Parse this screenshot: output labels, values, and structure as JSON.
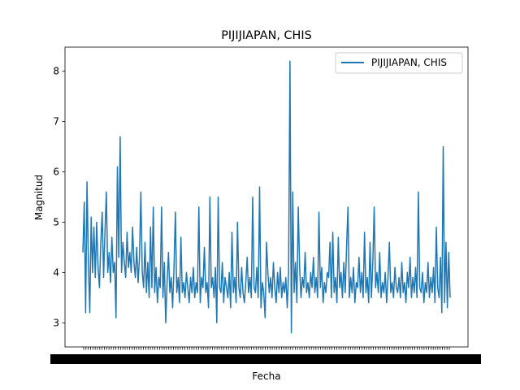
{
  "chart_data": {
    "type": "line",
    "title": "PIJIJIAPAN, CHIS",
    "xlabel": "Fecha",
    "ylabel": "Magnitud",
    "ylim": [
      2.52,
      8.48
    ],
    "yticks": [
      3,
      4,
      5,
      6,
      7,
      8
    ],
    "x_tick_labels_note": "",
    "legend_position": "top-right",
    "series": [
      {
        "name": "PIJIJIAPAN, CHIS",
        "color": "#1f77b4",
        "values": [
          4.4,
          5.4,
          3.2,
          5.8,
          4.2,
          3.2,
          5.1,
          4.0,
          4.9,
          3.9,
          5.0,
          4.1,
          3.7,
          4.6,
          5.2,
          3.9,
          4.8,
          5.6,
          4.0,
          4.4,
          3.8,
          4.7,
          4.0,
          4.2,
          3.1,
          6.1,
          4.3,
          6.7,
          4.0,
          4.6,
          4.2,
          3.9,
          4.8,
          4.1,
          4.4,
          4.0,
          4.9,
          4.2,
          3.9,
          4.5,
          3.8,
          4.3,
          5.6,
          4.0,
          3.7,
          4.6,
          3.6,
          4.2,
          3.5,
          4.9,
          3.7,
          5.3,
          3.6,
          4.1,
          3.4,
          3.9,
          3.7,
          5.3,
          3.5,
          4.2,
          3.0,
          3.8,
          4.4,
          3.6,
          3.9,
          3.3,
          4.1,
          5.2,
          3.6,
          3.9,
          3.4,
          4.7,
          3.6,
          3.8,
          3.5,
          4.0,
          3.7,
          3.4,
          3.9,
          3.6,
          4.1,
          3.5,
          3.8,
          3.6,
          5.3,
          3.4,
          3.9,
          3.7,
          4.5,
          3.6,
          3.8,
          3.3,
          5.5,
          3.7,
          3.9,
          3.5,
          4.1,
          3.0,
          5.5,
          3.7,
          3.6,
          4.2,
          3.4,
          3.9,
          3.7,
          3.5,
          4.0,
          3.3,
          4.8,
          3.6,
          3.9,
          3.4,
          5.0,
          3.7,
          3.5,
          4.1,
          3.6,
          3.4,
          3.8,
          4.3,
          3.6,
          3.9,
          3.5,
          5.5,
          3.7,
          3.6,
          4.1,
          3.5,
          5.7,
          3.3,
          3.8,
          3.6,
          3.1,
          4.6,
          4.0,
          3.6,
          3.9,
          3.5,
          4.2,
          3.7,
          3.4,
          4.0,
          3.6,
          4.1,
          3.5,
          3.8,
          3.6,
          3.9,
          3.3,
          4.0,
          8.2,
          2.8,
          5.6,
          3.6,
          4.2,
          3.4,
          5.3,
          4.1,
          3.5,
          3.9,
          3.7,
          4.4,
          3.6,
          3.8,
          3.5,
          4.0,
          3.7,
          4.3,
          3.6,
          3.9,
          3.5,
          5.2,
          3.7,
          4.1,
          3.4,
          3.8,
          3.6,
          4.0,
          3.9,
          4.6,
          3.5,
          4.8,
          3.6,
          3.9,
          3.4,
          4.7,
          3.7,
          4.0,
          3.5,
          4.2,
          3.6,
          4.5,
          5.3,
          3.5,
          3.9,
          3.6,
          4.1,
          3.4,
          3.8,
          3.7,
          4.3,
          3.6,
          4.0,
          3.5,
          4.8,
          3.6,
          3.9,
          3.4,
          4.6,
          3.5,
          4.2,
          5.3,
          3.7,
          4.0,
          3.6,
          4.4,
          3.5,
          3.8,
          3.6,
          4.0,
          3.4,
          3.9,
          4.6,
          3.6,
          3.8,
          3.5,
          4.1,
          3.7,
          3.6,
          3.9,
          3.5,
          4.2,
          3.6,
          3.8,
          3.4,
          4.0,
          3.7,
          4.3,
          3.5,
          3.9,
          3.6,
          4.1,
          3.5,
          5.6,
          3.7,
          3.6,
          4.0,
          3.4,
          3.8,
          3.6,
          4.2,
          3.5,
          3.9,
          3.6,
          4.1,
          3.4,
          4.9,
          3.7,
          3.5,
          4.3,
          3.2,
          6.5,
          3.4,
          4.6,
          3.3,
          4.4,
          3.5
        ]
      }
    ]
  }
}
